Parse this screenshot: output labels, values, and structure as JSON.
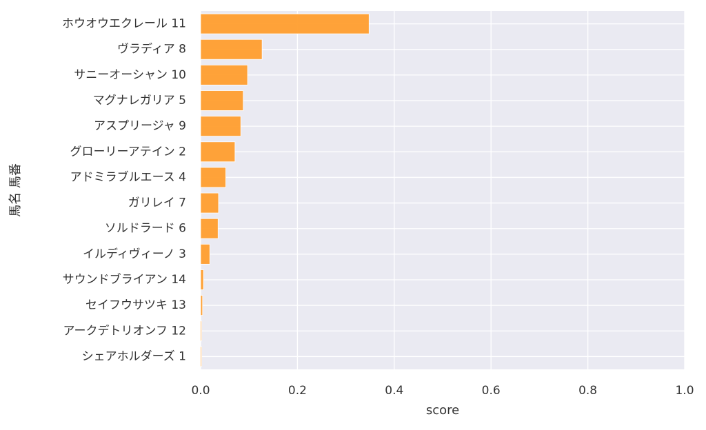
{
  "chart_data": {
    "type": "bar",
    "orientation": "horizontal",
    "title": "",
    "xlabel": "score",
    "ylabel": "馬名 馬番",
    "xlim": [
      0,
      1.0
    ],
    "x_ticks": [
      "0.0",
      "0.2",
      "0.4",
      "0.6",
      "0.8",
      "1.0"
    ],
    "grid": true,
    "bar_color": "#FF9E2E",
    "background_color": "#EAEAF2",
    "grid_color": "#FFFFFF",
    "categories": [
      "ホウオウエクレール 11",
      "ヴラディア 8",
      "サニーオーシャン 10",
      "マグナレガリア 5",
      "アスプリージャ 9",
      "グローリーアテイン 2",
      "アドミラブルエース 4",
      "ガリレイ 7",
      "ソルドラード 6",
      "イルディヴィーノ 3",
      "サウンドブライアン 14",
      "セイフウサツキ 13",
      "アークデトリオンフ 12",
      "シェアホルダーズ 1"
    ],
    "values": [
      0.348,
      0.127,
      0.097,
      0.088,
      0.083,
      0.071,
      0.052,
      0.037,
      0.036,
      0.019,
      0.006,
      0.004,
      0.002,
      0.002
    ]
  }
}
